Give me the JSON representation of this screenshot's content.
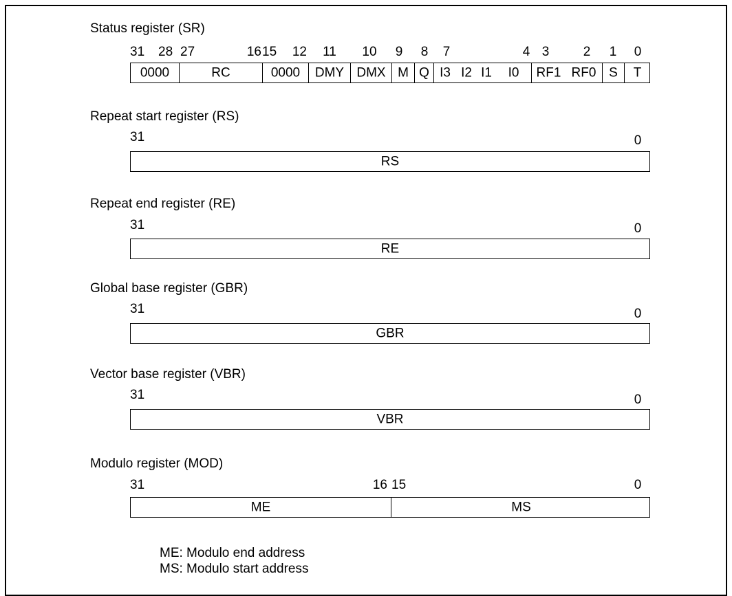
{
  "sr": {
    "title": "Status register (SR)",
    "bit_labels": [
      "31",
      "28",
      "27",
      "16",
      "15",
      "12",
      "11",
      "10",
      "9",
      "8",
      "7",
      "4",
      "3",
      "2",
      "1",
      "0"
    ],
    "fields": [
      "0000",
      "RC",
      "0000",
      "DMY",
      "DMX",
      "M",
      "Q",
      "I3",
      "I2",
      "I1",
      "I0",
      "RF1",
      "RF0",
      "S",
      "T"
    ]
  },
  "rs": {
    "title": "Repeat start register (RS)",
    "msb": "31",
    "lsb": "0",
    "field": "RS"
  },
  "re": {
    "title": "Repeat end register (RE)",
    "msb": "31",
    "lsb": "0",
    "field": "RE"
  },
  "gbr": {
    "title": "Global base register (GBR)",
    "msb": "31",
    "lsb": "0",
    "field": "GBR"
  },
  "vbr": {
    "title": "Vector base register (VBR)",
    "msb": "31",
    "lsb": "0",
    "field": "VBR"
  },
  "mod": {
    "title": "Modulo register (MOD)",
    "bit_labels": [
      "31",
      "16",
      "15",
      "0"
    ],
    "fields": [
      "ME",
      "MS"
    ]
  },
  "legend": [
    "ME: Modulo end address",
    "MS: Modulo start address"
  ]
}
